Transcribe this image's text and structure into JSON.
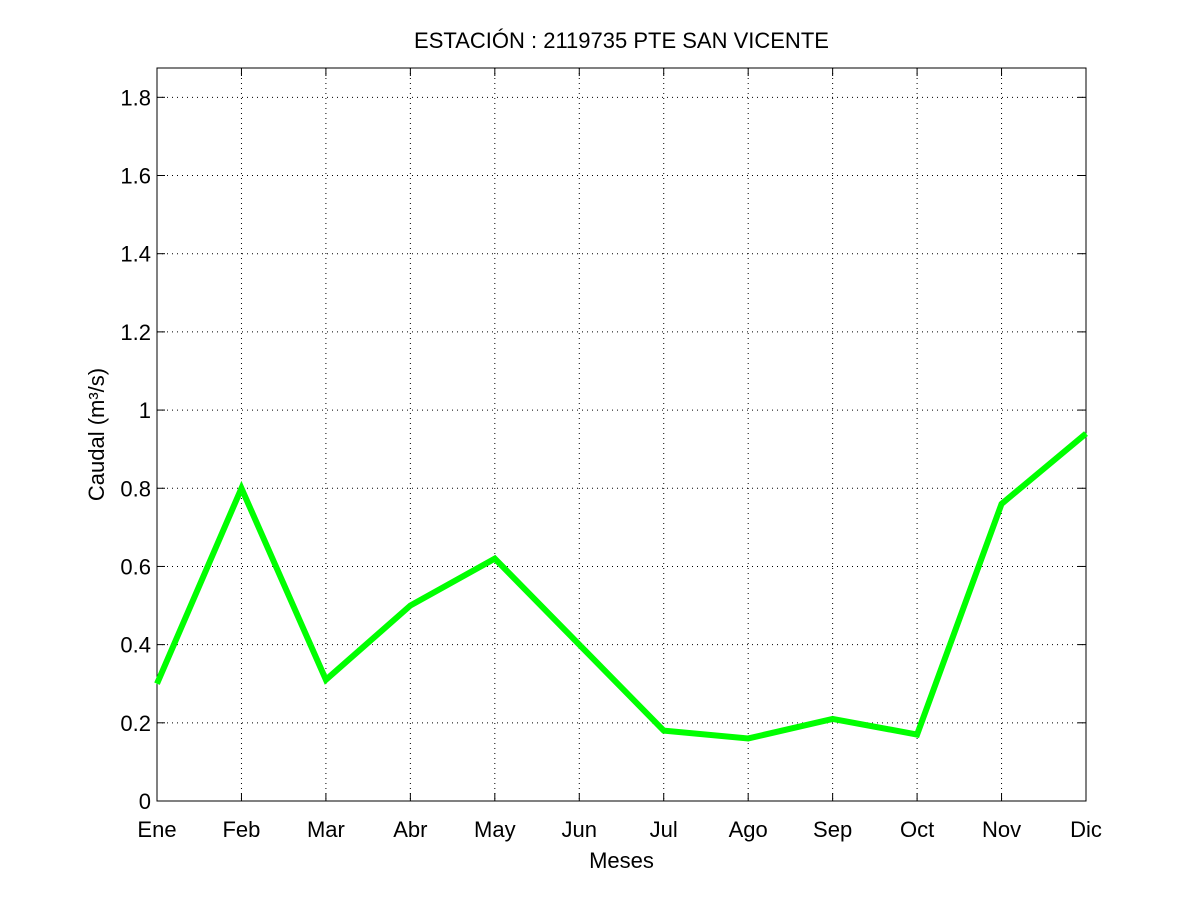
{
  "chart_data": {
    "type": "line",
    "title": "ESTACIÓN :  2119735  PTE SAN VICENTE",
    "xlabel": "Meses",
    "ylabel": "Caudal (m³/s)",
    "categories": [
      "Ene",
      "Feb",
      "Mar",
      "Abr",
      "May",
      "Jun",
      "Jul",
      "Ago",
      "Sep",
      "Oct",
      "Nov",
      "Dic"
    ],
    "series": [
      {
        "name": "Caudal",
        "color": "#00ff00",
        "values": [
          0.3,
          0.8,
          0.31,
          0.5,
          0.62,
          0.4,
          0.18,
          0.16,
          0.21,
          0.17,
          0.76,
          0.94
        ]
      }
    ],
    "ylim": [
      0,
      1.875
    ],
    "yticks": [
      "0",
      "0.2",
      "0.4",
      "0.6",
      "0.8",
      "1",
      "1.2",
      "1.4",
      "1.6",
      "1.8"
    ],
    "grid": true
  }
}
